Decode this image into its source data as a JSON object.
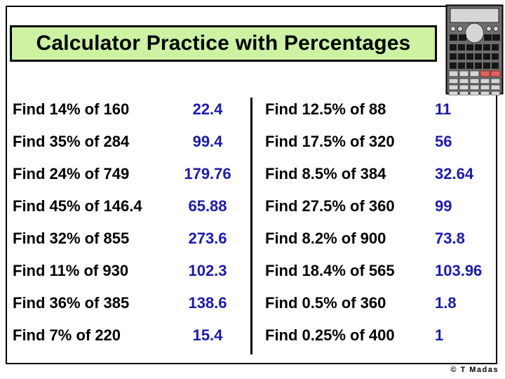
{
  "title": "Calculator Practice with Percentages",
  "credit": "© T Madas",
  "colors": {
    "answer_blue": "#1a1ab4",
    "title_bg": "#ccf2a2",
    "calc_body": "#6e6e6e",
    "calc_light": "#d6d6d6",
    "calc_dark": "#161616",
    "calc_red": "#e4635c"
  },
  "icons": {
    "calculator": "calculator-icon"
  },
  "problems": {
    "left": [
      {
        "question": "Find 14% of 160",
        "answer": "22.4"
      },
      {
        "question": "Find 35% of 284",
        "answer": "99.4"
      },
      {
        "question": "Find 24% of 749",
        "answer": "179.76"
      },
      {
        "question": "Find 45% of 146.4",
        "answer": "65.88"
      },
      {
        "question": "Find 32% of 855",
        "answer": "273.6"
      },
      {
        "question": "Find 11% of 930",
        "answer": "102.3"
      },
      {
        "question": "Find 36% of 385",
        "answer": "138.6"
      },
      {
        "question": "Find 7% of 220",
        "answer": "15.4"
      }
    ],
    "right": [
      {
        "question": "Find 12.5% of 88",
        "answer": "11"
      },
      {
        "question": "Find 17.5% of 320",
        "answer": "56"
      },
      {
        "question": "Find 8.5% of 384",
        "answer": "32.64"
      },
      {
        "question": "Find 27.5% of 360",
        "answer": "99"
      },
      {
        "question": "Find 8.2% of 900",
        "answer": "73.8"
      },
      {
        "question": "Find 18.4% of 565",
        "answer": "103.96"
      },
      {
        "question": "Find 0.5% of 360",
        "answer": "1.8"
      },
      {
        "question": "Find 0.25% of 400",
        "answer": "1"
      }
    ]
  }
}
